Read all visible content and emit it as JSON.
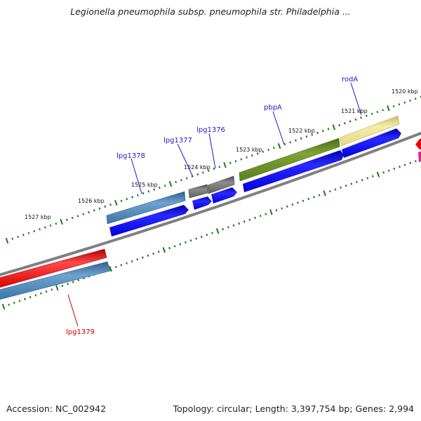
{
  "title": "Legionella pneumophila subsp. pneumophila str. Philadelphia ...",
  "footer": {
    "accession": "Accession: NC_002942",
    "summary": "Topology: circular; Length: 3,397,754 bp; Genes: 2,994"
  },
  "ruler": [
    "1520 kbp",
    "1521 kbp",
    "1522 kbp",
    "1523 kbp",
    "1524 kbp",
    "1525 kbp",
    "1526 kbp",
    "1527 kbp"
  ],
  "gene_labels": {
    "rodA": "rodA",
    "pbpA": "pbpA",
    "lpg1376": "lpg1376",
    "lpg1377": "lpg1377",
    "lpg1378": "lpg1378",
    "lpg1379": "lpg1379"
  },
  "colors": {
    "forward_label": "#1a1acc",
    "reverse_label": "#cc0000",
    "cds": "#0000ee",
    "backbone": "#808080",
    "ticks": "#1a7a1a",
    "rodA": "#f0e6a0",
    "pbpA": "#6b8e23",
    "lpg1376": "#6e6e6e",
    "lpg1377": "#6e6e6e",
    "lpg1378": "#4682b4",
    "lpg1379_red": "#ee1111",
    "lpg1379_blue": "#4682b4",
    "edge_red": "#ee0000",
    "edge_pink": "#e0208c"
  }
}
